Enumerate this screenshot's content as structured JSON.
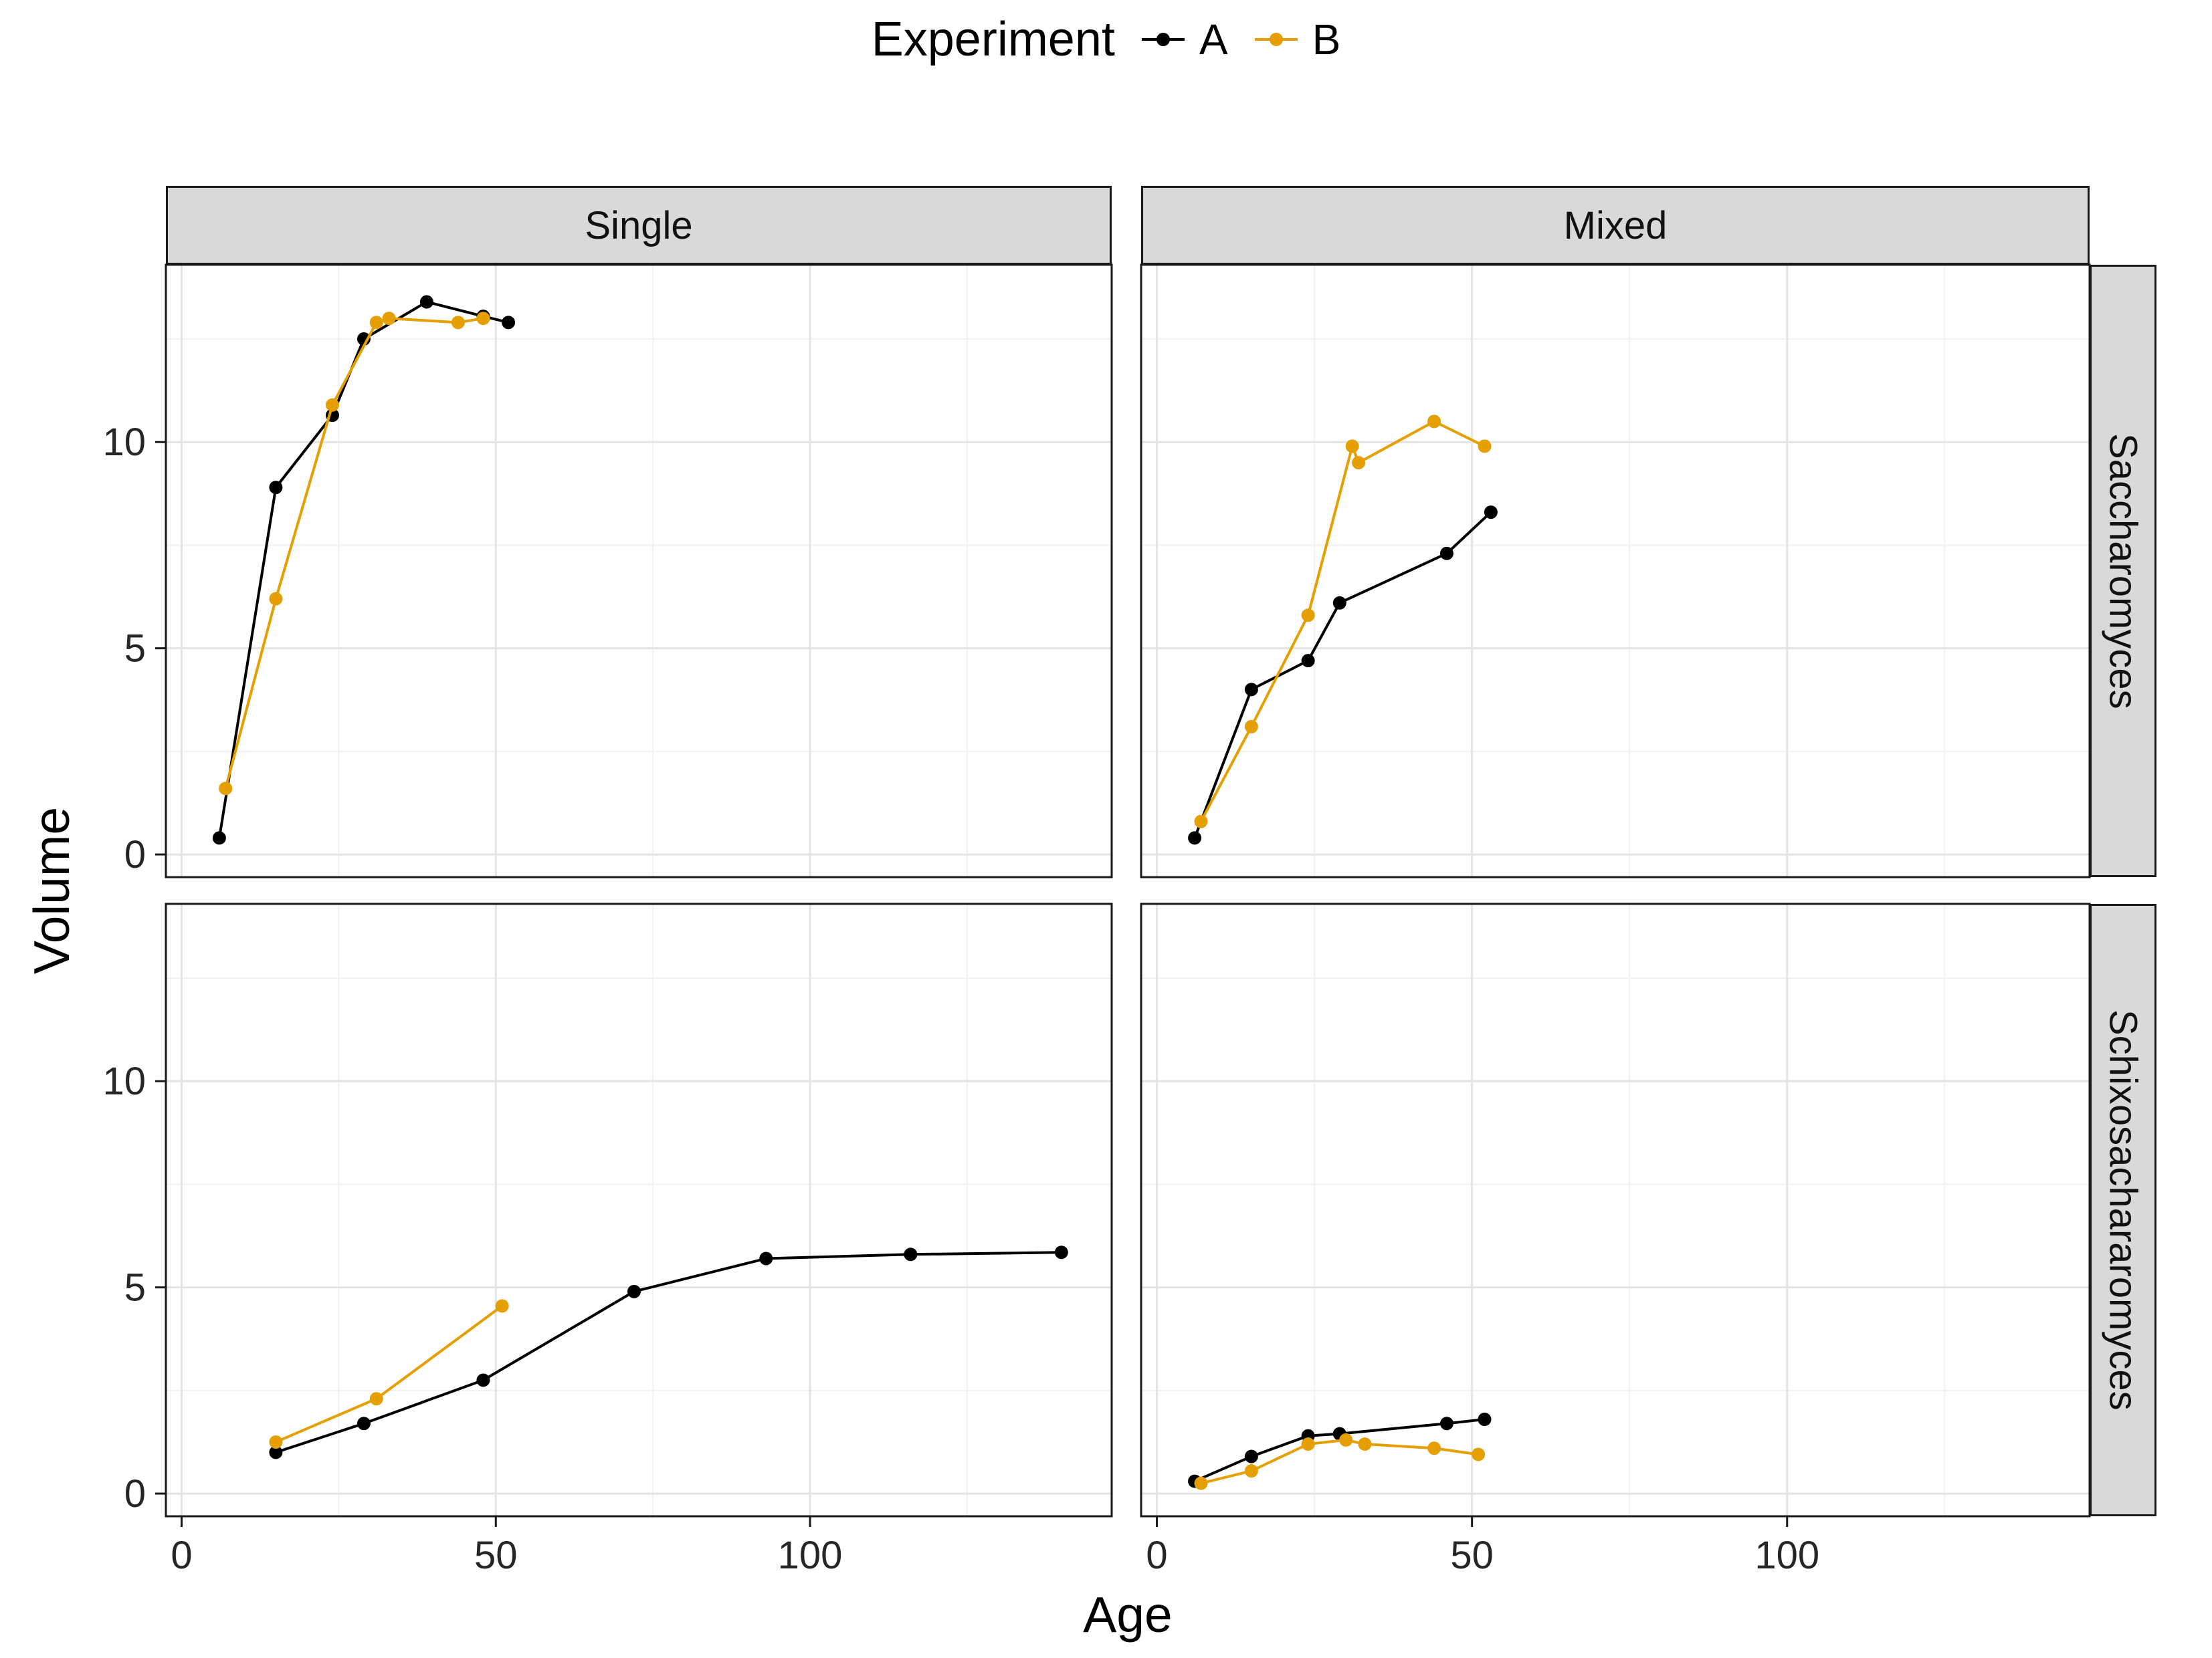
{
  "chart_data": {
    "type": "line",
    "legend": {
      "title": "Experiment",
      "position": "top",
      "series": [
        {
          "name": "A",
          "color": "#000000"
        },
        {
          "name": "B",
          "color": "#E69F00"
        }
      ]
    },
    "facets": {
      "cols": [
        "Single",
        "Mixed"
      ],
      "rows": [
        "Saccharomyces",
        "Schixosachararomyces"
      ]
    },
    "axes": {
      "x": {
        "label": "Age",
        "ticks": [
          0,
          50,
          100
        ],
        "minor_ticks": [
          25,
          75,
          125
        ],
        "domain": [
          -2.5,
          148
        ]
      },
      "y": {
        "label": "Volume",
        "ticks": [
          0,
          5,
          10
        ],
        "minor_ticks": [
          2.5,
          7.5,
          12.5
        ],
        "domain": [
          -0.55,
          14.3
        ]
      }
    },
    "style": {
      "grid_major_color": "#E4E4E4",
      "grid_minor_color": "#F1F1F1",
      "panel_border_color": "#1a1a1a",
      "strip_fill": "#D9D9D9",
      "tick_label_color": "#262626"
    },
    "panels": [
      {
        "facet_col": "Single",
        "facet_row": "Saccharomyces",
        "col": 0,
        "row": 0,
        "series": [
          {
            "name": "A",
            "points": [
              [
                6,
                0.4
              ],
              [
                15,
                8.9
              ],
              [
                24,
                10.65
              ],
              [
                29,
                12.5
              ],
              [
                39,
                13.4
              ],
              [
                48,
                13.05
              ],
              [
                52,
                12.9
              ]
            ]
          },
          {
            "name": "B",
            "points": [
              [
                7,
                1.6
              ],
              [
                15,
                6.2
              ],
              [
                24,
                10.9
              ],
              [
                31,
                12.9
              ],
              [
                33,
                13.0
              ],
              [
                44,
                12.9
              ],
              [
                48,
                13.0
              ]
            ]
          }
        ]
      },
      {
        "facet_col": "Mixed",
        "facet_row": "Saccharomyces",
        "col": 1,
        "row": 0,
        "series": [
          {
            "name": "A",
            "points": [
              [
                6,
                0.4
              ],
              [
                15,
                4.0
              ],
              [
                24,
                4.7
              ],
              [
                29,
                6.1
              ],
              [
                46,
                7.3
              ],
              [
                53,
                8.3
              ]
            ]
          },
          {
            "name": "B",
            "points": [
              [
                7,
                0.8
              ],
              [
                15,
                3.1
              ],
              [
                24,
                5.8
              ],
              [
                31,
                9.9
              ],
              [
                32,
                9.5
              ],
              [
                44,
                10.5
              ],
              [
                52,
                9.9
              ]
            ]
          }
        ]
      },
      {
        "facet_col": "Single",
        "facet_row": "Schixosachararomyces",
        "col": 0,
        "row": 1,
        "series": [
          {
            "name": "A",
            "points": [
              [
                15,
                1.0
              ],
              [
                29,
                1.7
              ],
              [
                48,
                2.75
              ],
              [
                72,
                4.9
              ],
              [
                93,
                5.7
              ],
              [
                116,
                5.8
              ],
              [
                140,
                5.85
              ]
            ]
          },
          {
            "name": "B",
            "points": [
              [
                15,
                1.25
              ],
              [
                31,
                2.3
              ],
              [
                51,
                4.55
              ]
            ]
          }
        ]
      },
      {
        "facet_col": "Mixed",
        "facet_row": "Schixosachararomyces",
        "col": 1,
        "row": 1,
        "series": [
          {
            "name": "A",
            "points": [
              [
                6,
                0.3
              ],
              [
                15,
                0.9
              ],
              [
                24,
                1.4
              ],
              [
                29,
                1.45
              ],
              [
                46,
                1.7
              ],
              [
                52,
                1.8
              ]
            ]
          },
          {
            "name": "B",
            "points": [
              [
                7,
                0.25
              ],
              [
                15,
                0.55
              ],
              [
                24,
                1.2
              ],
              [
                30,
                1.3
              ],
              [
                33,
                1.2
              ],
              [
                44,
                1.1
              ],
              [
                51,
                0.95
              ]
            ]
          }
        ]
      }
    ]
  }
}
